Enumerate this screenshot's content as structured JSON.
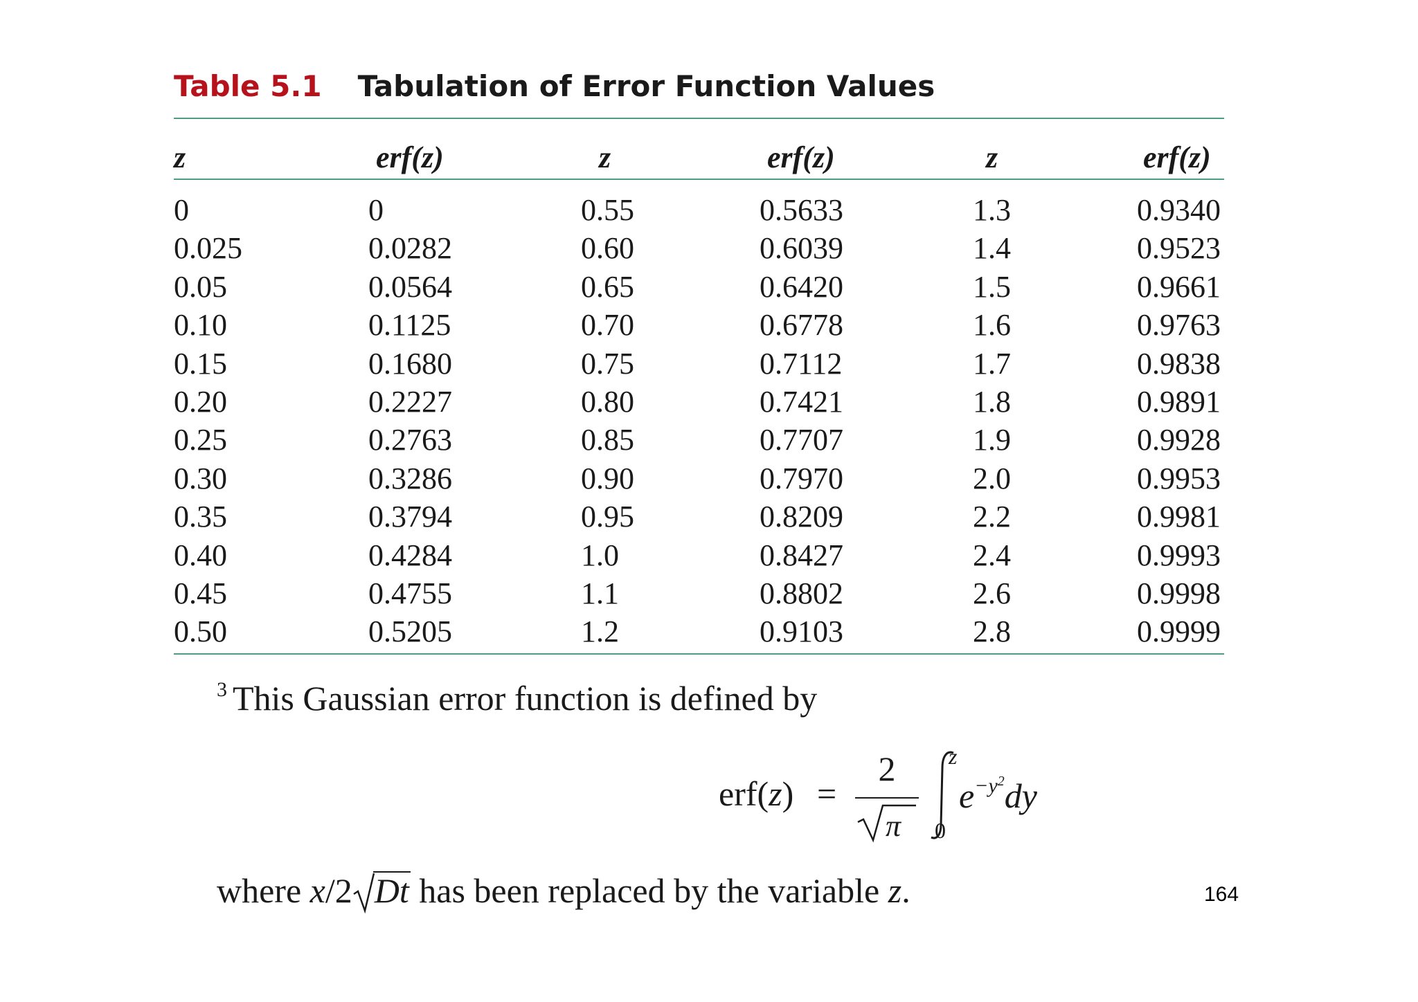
{
  "caption": {
    "number": "Table 5.1",
    "title": "Tabulation of Error Function Values"
  },
  "table": {
    "headers": [
      "z",
      "erf(z)",
      "z",
      "erf(z)",
      "z",
      "erf(z)"
    ],
    "rows": [
      [
        "0",
        "0",
        "0.55",
        "0.5633",
        "1.3",
        "0.9340"
      ],
      [
        "0.025",
        "0.0282",
        "0.60",
        "0.6039",
        "1.4",
        "0.9523"
      ],
      [
        "0.05",
        "0.0564",
        "0.65",
        "0.6420",
        "1.5",
        "0.9661"
      ],
      [
        "0.10",
        "0.1125",
        "0.70",
        "0.6778",
        "1.6",
        "0.9763"
      ],
      [
        "0.15",
        "0.1680",
        "0.75",
        "0.7112",
        "1.7",
        "0.9838"
      ],
      [
        "0.20",
        "0.2227",
        "0.80",
        "0.7421",
        "1.8",
        "0.9891"
      ],
      [
        "0.25",
        "0.2763",
        "0.85",
        "0.7707",
        "1.9",
        "0.9928"
      ],
      [
        "0.30",
        "0.3286",
        "0.90",
        "0.7970",
        "2.0",
        "0.9953"
      ],
      [
        "0.35",
        "0.3794",
        "0.95",
        "0.8209",
        "2.2",
        "0.9981"
      ],
      [
        "0.40",
        "0.4284",
        "1.0",
        "0.8427",
        "2.4",
        "0.9993"
      ],
      [
        "0.45",
        "0.4755",
        "1.1",
        "0.8802",
        "2.6",
        "0.9998"
      ],
      [
        "0.50",
        "0.5205",
        "1.2",
        "0.9103",
        "2.8",
        "0.9999"
      ]
    ]
  },
  "footnote": {
    "marker": "3",
    "text": "This Gaussian error function is defined by"
  },
  "equation": {
    "lhs_func": "erf",
    "lhs_open": "(",
    "lhs_var": "z",
    "lhs_close": ")",
    "equals": "=",
    "numerator": "2",
    "upper_limit": "z",
    "lower_limit": "0",
    "base": "e",
    "exponent": "−y",
    "exponent_power": "2",
    "differential": "dy"
  },
  "where_line": {
    "prefix": "where ",
    "var_x": "x",
    "slash_two": "/2",
    "sqrt_content": "Dt",
    "suffix": " has been replaced by the variable ",
    "var_z": "z",
    "period": "."
  },
  "page_number": "164",
  "colors": {
    "caption_number": "#b5121b",
    "rule": "#4e9c86"
  }
}
